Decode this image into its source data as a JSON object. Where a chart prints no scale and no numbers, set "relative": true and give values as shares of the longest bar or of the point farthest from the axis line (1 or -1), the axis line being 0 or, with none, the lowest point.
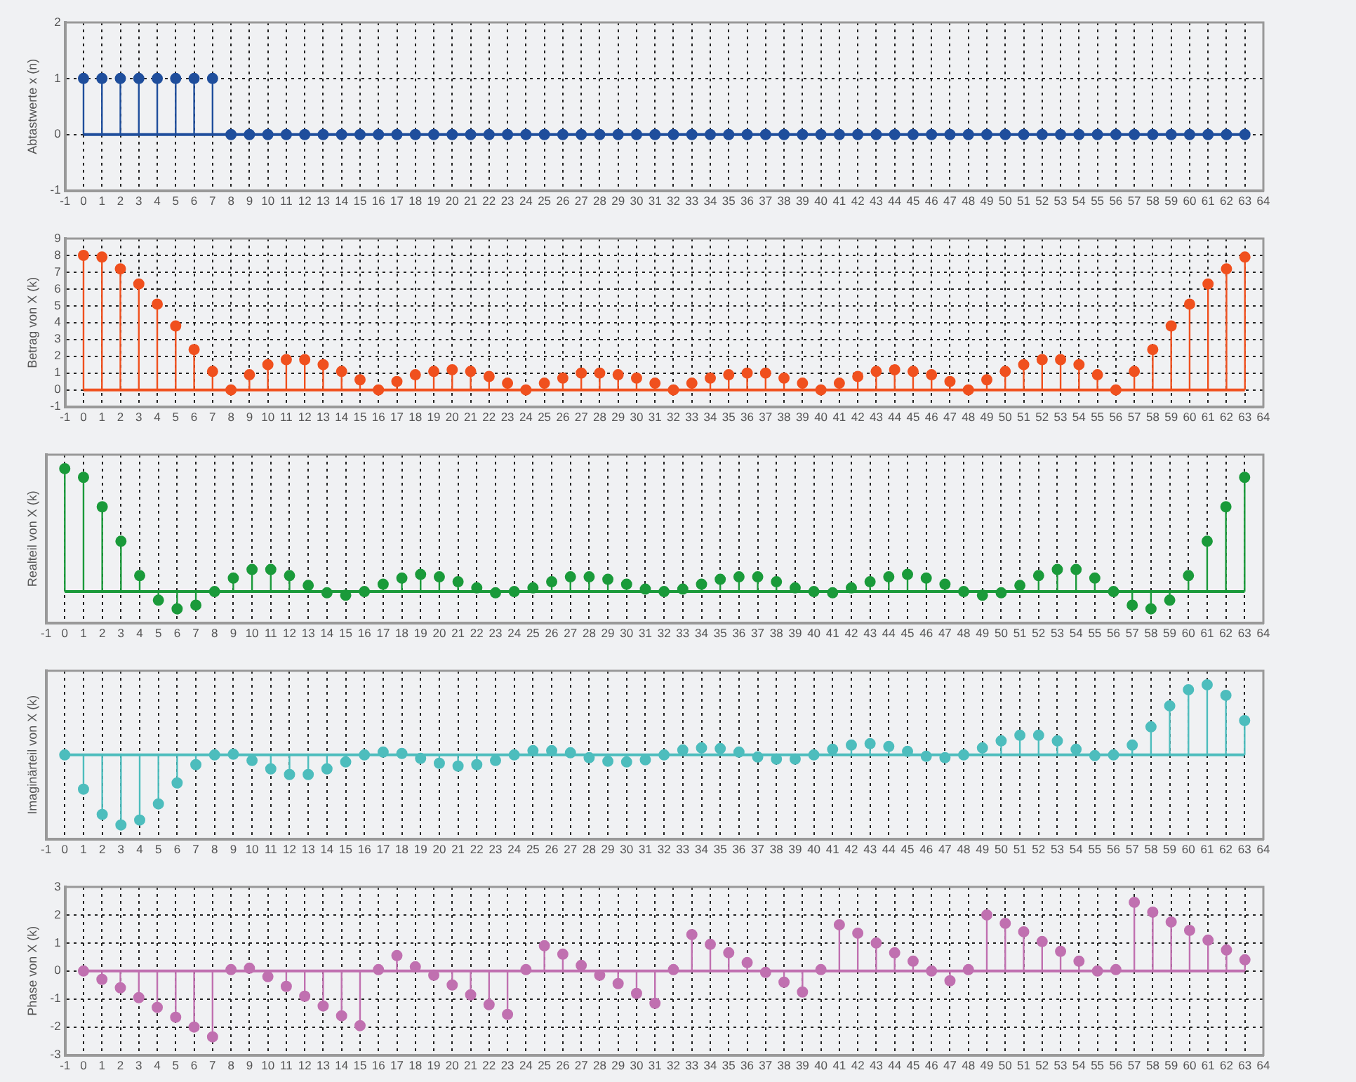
{
  "chart_data": [
    {
      "type": "lollipop",
      "ylabel": "Abtastwerte x (n)",
      "color": "#1f4e9c",
      "ref_lines": [
        {
          "axis": "y",
          "value": 0,
          "color": "#1f4e9c"
        }
      ],
      "marker": "circle",
      "grid": true,
      "xlim": [
        -1,
        64
      ],
      "xticks": [
        -1,
        0,
        1,
        2,
        3,
        4,
        5,
        6,
        7,
        8,
        9,
        10,
        11,
        12,
        13,
        14,
        15,
        16,
        17,
        18,
        19,
        20,
        21,
        22,
        23,
        24,
        25,
        26,
        27,
        28,
        29,
        30,
        31,
        32,
        33,
        34,
        35,
        36,
        37,
        38,
        39,
        40,
        41,
        42,
        43,
        44,
        45,
        46,
        47,
        48,
        49,
        50,
        51,
        52,
        53,
        54,
        55,
        56,
        57,
        58,
        59,
        60,
        61,
        62,
        63,
        64
      ],
      "ylim": [
        -1,
        2
      ],
      "yticks": [
        -1,
        0,
        1,
        2
      ],
      "x": [
        0,
        1,
        2,
        3,
        4,
        5,
        6,
        7,
        8,
        9,
        10,
        11,
        12,
        13,
        14,
        15,
        16,
        17,
        18,
        19,
        20,
        21,
        22,
        23,
        24,
        25,
        26,
        27,
        28,
        29,
        30,
        31,
        32,
        33,
        34,
        35,
        36,
        37,
        38,
        39,
        40,
        41,
        42,
        43,
        44,
        45,
        46,
        47,
        48,
        49,
        50,
        51,
        52,
        53,
        54,
        55,
        56,
        57,
        58,
        59,
        60,
        61,
        62,
        63
      ],
      "values": [
        1,
        1,
        1,
        1,
        1,
        1,
        1,
        1,
        0,
        0,
        0,
        0,
        0,
        0,
        0,
        0,
        0,
        0,
        0,
        0,
        0,
        0,
        0,
        0,
        0,
        0,
        0,
        0,
        0,
        0,
        0,
        0,
        0,
        0,
        0,
        0,
        0,
        0,
        0,
        0,
        0,
        0,
        0,
        0,
        0,
        0,
        0,
        0,
        0,
        0,
        0,
        0,
        0,
        0,
        0,
        0,
        0,
        0,
        0,
        0,
        0,
        0,
        0,
        0
      ]
    },
    {
      "type": "lollipop",
      "ylabel": "Betrag von X (k)",
      "color": "#f0501e",
      "ref_lines": [
        {
          "axis": "y",
          "value": 0,
          "color": "#f0501e"
        }
      ],
      "marker": "circle",
      "grid": true,
      "xlim": [
        -1,
        64
      ],
      "xticks": [
        -1,
        0,
        1,
        2,
        3,
        4,
        5,
        6,
        7,
        8,
        9,
        10,
        11,
        12,
        13,
        14,
        15,
        16,
        17,
        18,
        19,
        20,
        21,
        22,
        23,
        24,
        25,
        26,
        27,
        28,
        29,
        30,
        31,
        32,
        33,
        34,
        35,
        36,
        37,
        38,
        39,
        40,
        41,
        42,
        43,
        44,
        45,
        46,
        47,
        48,
        49,
        50,
        51,
        52,
        53,
        54,
        55,
        56,
        57,
        58,
        59,
        60,
        61,
        62,
        63,
        64
      ],
      "ylim": [
        -1,
        9
      ],
      "yticks": [
        -1,
        0,
        1,
        2,
        3,
        4,
        5,
        6,
        7,
        8,
        9
      ],
      "x": [
        0,
        1,
        2,
        3,
        4,
        5,
        6,
        7,
        8,
        9,
        10,
        11,
        12,
        13,
        14,
        15,
        16,
        17,
        18,
        19,
        20,
        21,
        22,
        23,
        24,
        25,
        26,
        27,
        28,
        29,
        30,
        31,
        32,
        33,
        34,
        35,
        36,
        37,
        38,
        39,
        40,
        41,
        42,
        43,
        44,
        45,
        46,
        47,
        48,
        49,
        50,
        51,
        52,
        53,
        54,
        55,
        56,
        57,
        58,
        59,
        60,
        61,
        62,
        63
      ],
      "values": [
        8,
        7.9,
        7.2,
        6.3,
        5.1,
        3.8,
        2.4,
        1.1,
        0,
        0.9,
        1.5,
        1.8,
        1.8,
        1.5,
        1.1,
        0.6,
        0,
        0.5,
        0.9,
        1.1,
        1.2,
        1.1,
        0.8,
        0.4,
        0,
        0.4,
        0.7,
        1.0,
        1.0,
        0.9,
        0.7,
        0.4,
        0,
        0.4,
        0.7,
        0.9,
        1.0,
        1.0,
        0.7,
        0.4,
        0,
        0.4,
        0.8,
        1.1,
        1.2,
        1.1,
        0.9,
        0.5,
        0,
        0.6,
        1.1,
        1.5,
        1.8,
        1.8,
        1.5,
        0.9,
        0,
        1.1,
        2.4,
        3.8,
        5.1,
        6.3,
        7.2,
        7.9
      ]
    },
    {
      "type": "lollipop",
      "ylabel": "Realteil von X (k)",
      "color": "#1a9a3a",
      "ref_lines": [
        {
          "axis": "y",
          "value": 0,
          "color": "#1a9a3a"
        }
      ],
      "marker": "circle",
      "grid": "x",
      "relative": true,
      "xlim": [
        -1,
        64
      ],
      "xticks": [
        -1,
        0,
        1,
        2,
        3,
        4,
        5,
        6,
        7,
        8,
        9,
        10,
        11,
        12,
        13,
        14,
        15,
        16,
        17,
        18,
        19,
        20,
        21,
        22,
        23,
        24,
        25,
        26,
        27,
        28,
        29,
        30,
        31,
        32,
        33,
        34,
        35,
        36,
        37,
        38,
        39,
        40,
        41,
        42,
        43,
        44,
        45,
        46,
        47,
        48,
        49,
        50,
        51,
        52,
        53,
        54,
        55,
        56,
        57,
        58,
        59,
        60,
        61,
        62,
        63,
        64
      ],
      "x": [
        0,
        1,
        2,
        3,
        4,
        5,
        6,
        7,
        8,
        9,
        10,
        11,
        12,
        13,
        14,
        15,
        16,
        17,
        18,
        19,
        20,
        21,
        22,
        23,
        24,
        25,
        26,
        27,
        28,
        29,
        30,
        31,
        32,
        33,
        34,
        35,
        36,
        37,
        38,
        39,
        40,
        41,
        42,
        43,
        44,
        45,
        46,
        47,
        48,
        49,
        50,
        51,
        52,
        53,
        54,
        55,
        56,
        57,
        58,
        59,
        60,
        61,
        62,
        63
      ],
      "values": [
        1,
        0.93,
        0.69,
        0.41,
        0.13,
        -0.07,
        -0.14,
        -0.11,
        0,
        0.11,
        0.18,
        0.18,
        0.13,
        0.05,
        -0.01,
        -0.03,
        0,
        0.06,
        0.11,
        0.14,
        0.12,
        0.08,
        0.03,
        -0.01,
        0,
        0.03,
        0.08,
        0.12,
        0.12,
        0.1,
        0.06,
        0.02,
        0,
        0.02,
        0.06,
        0.1,
        0.12,
        0.12,
        0.08,
        0.03,
        0,
        -0.01,
        0.03,
        0.08,
        0.12,
        0.14,
        0.11,
        0.06,
        0,
        -0.03,
        -0.01,
        0.05,
        0.13,
        0.18,
        0.18,
        0.11,
        0,
        -0.11,
        -0.14,
        -0.07,
        0.13,
        0.41,
        0.69,
        0.93
      ]
    },
    {
      "type": "lollipop",
      "ylabel": "Imaginärteil von X (k)",
      "color": "#4dbdbd",
      "ref_lines": [
        {
          "axis": "y",
          "value": 0,
          "color": "#4dbdbd"
        }
      ],
      "marker": "circle",
      "grid": "x",
      "relative": true,
      "xlim": [
        -1,
        64
      ],
      "xticks": [
        -1,
        0,
        1,
        2,
        3,
        4,
        5,
        6,
        7,
        8,
        9,
        10,
        11,
        12,
        13,
        14,
        15,
        16,
        17,
        18,
        19,
        20,
        21,
        22,
        23,
        24,
        25,
        26,
        27,
        28,
        29,
        30,
        31,
        32,
        33,
        34,
        35,
        36,
        37,
        38,
        39,
        40,
        41,
        42,
        43,
        44,
        45,
        46,
        47,
        48,
        49,
        50,
        51,
        52,
        53,
        54,
        55,
        56,
        57,
        58,
        59,
        60,
        61,
        62,
        63,
        64
      ],
      "x": [
        0,
        1,
        2,
        3,
        4,
        5,
        6,
        7,
        8,
        9,
        10,
        11,
        12,
        13,
        14,
        15,
        16,
        17,
        18,
        19,
        20,
        21,
        22,
        23,
        24,
        25,
        26,
        27,
        28,
        29,
        30,
        31,
        32,
        33,
        34,
        35,
        36,
        37,
        38,
        39,
        40,
        41,
        42,
        43,
        44,
        45,
        46,
        47,
        48,
        49,
        50,
        51,
        52,
        53,
        54,
        55,
        56,
        57,
        58,
        59,
        60,
        61,
        62,
        63
      ],
      "values": [
        0,
        -0.49,
        -0.85,
        -1,
        -0.93,
        -0.7,
        -0.4,
        -0.14,
        0,
        0.01,
        -0.08,
        -0.2,
        -0.28,
        -0.28,
        -0.2,
        -0.1,
        0,
        0.04,
        0.02,
        -0.05,
        -0.12,
        -0.16,
        -0.14,
        -0.08,
        0,
        0.06,
        0.06,
        0.03,
        -0.04,
        -0.09,
        -0.1,
        -0.07,
        0,
        0.07,
        0.1,
        0.09,
        0.04,
        -0.03,
        -0.06,
        -0.06,
        0,
        0.08,
        0.14,
        0.16,
        0.12,
        0.05,
        -0.02,
        -0.04,
        0,
        0.1,
        0.2,
        0.28,
        0.28,
        0.2,
        0.08,
        -0.01,
        0,
        0.14,
        0.4,
        0.7,
        0.93,
        1,
        0.85,
        0.49
      ]
    },
    {
      "type": "lollipop",
      "ylabel": "Phase von X (k)",
      "color": "#c070b0",
      "ref_lines": [
        {
          "axis": "y",
          "value": 0,
          "color": "#c070b0"
        }
      ],
      "marker": "circle",
      "grid": true,
      "xlim": [
        -1,
        64
      ],
      "xticks": [
        -1,
        0,
        1,
        2,
        3,
        4,
        5,
        6,
        7,
        8,
        9,
        10,
        11,
        12,
        13,
        14,
        15,
        16,
        17,
        18,
        19,
        20,
        21,
        22,
        23,
        24,
        25,
        26,
        27,
        28,
        29,
        30,
        31,
        32,
        33,
        34,
        35,
        36,
        37,
        38,
        39,
        40,
        41,
        42,
        43,
        44,
        45,
        46,
        47,
        48,
        49,
        50,
        51,
        52,
        53,
        54,
        55,
        56,
        57,
        58,
        59,
        60,
        61,
        62,
        63,
        64
      ],
      "ylim": [
        -3,
        3
      ],
      "yticks": [
        -3,
        -2,
        -1,
        0,
        1,
        2,
        3
      ],
      "x": [
        0,
        1,
        2,
        3,
        4,
        5,
        6,
        7,
        8,
        9,
        10,
        11,
        12,
        13,
        14,
        15,
        16,
        17,
        18,
        19,
        20,
        21,
        22,
        23,
        24,
        25,
        26,
        27,
        28,
        29,
        30,
        31,
        32,
        33,
        34,
        35,
        36,
        37,
        38,
        39,
        40,
        41,
        42,
        43,
        44,
        45,
        46,
        47,
        48,
        49,
        50,
        51,
        52,
        53,
        54,
        55,
        56,
        57,
        58,
        59,
        60,
        61,
        62,
        63
      ],
      "values": [
        0,
        -0.3,
        -0.6,
        -0.95,
        -1.3,
        -1.65,
        -2.0,
        -2.35,
        0.05,
        0.1,
        -0.2,
        -0.55,
        -0.9,
        -1.25,
        -1.6,
        -1.95,
        0.05,
        0.55,
        0.15,
        -0.15,
        -0.5,
        -0.85,
        -1.2,
        -1.55,
        0.05,
        0.9,
        0.6,
        0.2,
        -0.15,
        -0.45,
        -0.8,
        -1.15,
        0.05,
        1.3,
        0.95,
        0.65,
        0.3,
        -0.05,
        -0.4,
        -0.75,
        0.05,
        1.65,
        1.35,
        1.0,
        0.65,
        0.35,
        0.0,
        -0.35,
        0.05,
        2.0,
        1.7,
        1.4,
        1.05,
        0.7,
        0.35,
        0.0,
        0.05,
        2.45,
        2.1,
        1.75,
        1.45,
        1.1,
        0.75,
        0.4
      ]
    }
  ]
}
